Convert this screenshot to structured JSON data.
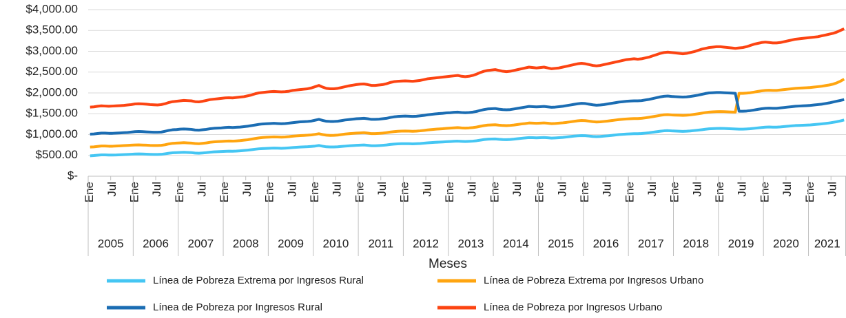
{
  "chart_data": {
    "type": "line",
    "x_label": "Meses",
    "categories": [
      "Ene",
      null,
      null,
      null,
      null,
      null,
      "Jul",
      null,
      null,
      null,
      null,
      null,
      "Ene",
      null,
      null,
      null,
      null,
      null,
      "Jul",
      null,
      null,
      null,
      null,
      null,
      "Ene",
      null,
      null,
      null,
      null,
      null,
      "Jul",
      null,
      null,
      null,
      null,
      null,
      "Ene",
      null,
      null,
      null,
      null,
      null,
      "Jul",
      null,
      null,
      null,
      null,
      null,
      "Ene",
      null,
      null,
      null,
      null,
      null,
      "Jul",
      null,
      null,
      null,
      null,
      null,
      "Ene",
      null,
      null,
      null,
      null,
      null,
      "Jul",
      null,
      null,
      null,
      null,
      null,
      "Ene",
      null,
      null,
      null,
      null,
      null,
      "Jul",
      null,
      null,
      null,
      null,
      null,
      "Ene",
      null,
      null,
      null,
      null,
      null,
      "Jul",
      null,
      null,
      null,
      null,
      null,
      "Ene",
      null,
      null,
      null,
      null,
      null,
      "Jul",
      null,
      null,
      null,
      null,
      null,
      "Ene",
      null,
      null,
      null,
      null,
      null,
      "Jul",
      null,
      null,
      null,
      null,
      null,
      "Ene",
      null,
      null,
      null,
      null,
      null,
      "Jul",
      null,
      null,
      null,
      null,
      null,
      "Ene",
      null,
      null,
      null,
      null,
      null,
      "Jul",
      null,
      null,
      null,
      null,
      null,
      "Ene",
      null,
      null,
      null,
      null,
      null,
      "Jul",
      null,
      null,
      null,
      null,
      null,
      "Ene",
      null,
      null,
      null,
      null,
      null,
      "Jul",
      null,
      null,
      null,
      null,
      null,
      "Ene",
      null,
      null,
      null,
      null,
      null,
      "Jul",
      null,
      null,
      null,
      null,
      null,
      "Ene",
      null,
      null,
      null,
      null,
      null,
      "Jul",
      null,
      null,
      null,
      null,
      null,
      "Ene",
      null,
      null,
      null,
      null,
      null,
      "Jul",
      null,
      null,
      null
    ],
    "groups": [
      "2005",
      "2006",
      "2007",
      "2008",
      "2009",
      "2010",
      "2011",
      "2012",
      "2013",
      "2014",
      "2015",
      "2016",
      "2017",
      "2018",
      "2019",
      "2020",
      "2021"
    ],
    "group_size": 12,
    "ylim": [
      0,
      4000
    ],
    "yticks": [
      {
        "value": 0,
        "label": "$-"
      },
      {
        "value": 500,
        "label": "$500.00"
      },
      {
        "value": 1000,
        "label": "$1,000.00"
      },
      {
        "value": 1500,
        "label": "$1,500.00"
      },
      {
        "value": 2000,
        "label": "$2,000.00"
      },
      {
        "value": 2500,
        "label": "$2,500.00"
      },
      {
        "value": 3000,
        "label": "$3,000.00"
      },
      {
        "value": 3500,
        "label": "$3,500.00"
      },
      {
        "value": 4000,
        "label": "$4,000.00"
      }
    ],
    "grid": true,
    "series": [
      {
        "name": "Línea de Pobreza Extrema por Ingresos Rural",
        "color": "#45c6f3",
        "values": [
          490,
          495,
          505,
          512,
          512,
          508,
          508,
          510,
          514,
          518,
          522,
          528,
          533,
          535,
          532,
          528,
          524,
          522,
          522,
          526,
          538,
          552,
          562,
          566,
          570,
          574,
          570,
          566,
          556,
          552,
          558,
          566,
          576,
          584,
          588,
          592,
          598,
          602,
          600,
          604,
          610,
          618,
          626,
          636,
          648,
          658,
          664,
          668,
          672,
          676,
          674,
          670,
          674,
          680,
          688,
          694,
          700,
          704,
          708,
          714,
          724,
          738,
          720,
          706,
          702,
          702,
          706,
          714,
          722,
          730,
          736,
          742,
          746,
          750,
          742,
          732,
          732,
          736,
          742,
          750,
          762,
          770,
          776,
          780,
          782,
          780,
          776,
          780,
          786,
          794,
          802,
          808,
          814,
          818,
          822,
          828,
          832,
          838,
          842,
          836,
          832,
          836,
          842,
          852,
          866,
          880,
          888,
          892,
          895,
          886,
          880,
          878,
          882,
          890,
          900,
          910,
          920,
          928,
          925,
          922,
          926,
          930,
          924,
          916,
          920,
          926,
          932,
          942,
          952,
          962,
          970,
          976,
          973,
          964,
          955,
          950,
          954,
          962,
          970,
          980,
          990,
          1000,
          1006,
          1012,
          1016,
          1020,
          1020,
          1024,
          1034,
          1044,
          1056,
          1068,
          1080,
          1090,
          1094,
          1088,
          1084,
          1080,
          1077,
          1080,
          1086,
          1096,
          1106,
          1116,
          1128,
          1138,
          1142,
          1146,
          1148,
          1146,
          1142,
          1138,
          1134,
          1130,
          1130,
          1134,
          1140,
          1150,
          1160,
          1170,
          1178,
          1182,
          1178,
          1178,
          1184,
          1192,
          1200,
          1208,
          1216,
          1220,
          1224,
          1228,
          1232,
          1240,
          1248,
          1256,
          1266,
          1278,
          1292,
          1308,
          1328,
          1350
        ]
      },
      {
        "name": "Línea de Pobreza Extrema por Ingresos Urbano",
        "color": "#ffa510",
        "values": [
          700,
          705,
          715,
          725,
          725,
          720,
          720,
          725,
          730,
          735,
          740,
          745,
          750,
          752,
          748,
          745,
          740,
          738,
          738,
          742,
          755,
          775,
          790,
          795,
          800,
          805,
          800,
          795,
          785,
          780,
          790,
          800,
          815,
          825,
          830,
          835,
          840,
          845,
          842,
          848,
          855,
          865,
          875,
          890,
          905,
          920,
          930,
          935,
          940,
          945,
          942,
          938,
          942,
          950,
          960,
          968,
          975,
          980,
          985,
          992,
          1005,
          1020,
          1000,
          985,
          980,
          982,
          988,
          1000,
          1012,
          1020,
          1028,
          1035,
          1040,
          1045,
          1035,
          1022,
          1022,
          1028,
          1035,
          1045,
          1060,
          1070,
          1078,
          1082,
          1085,
          1082,
          1078,
          1082,
          1090,
          1100,
          1112,
          1120,
          1128,
          1135,
          1140,
          1148,
          1155,
          1162,
          1168,
          1160,
          1155,
          1160,
          1168,
          1180,
          1198,
          1215,
          1228,
          1232,
          1236,
          1225,
          1218,
          1215,
          1220,
          1230,
          1242,
          1255,
          1265,
          1278,
          1275,
          1270,
          1275,
          1280,
          1272,
          1262,
          1266,
          1275,
          1282,
          1292,
          1305,
          1318,
          1330,
          1338,
          1334,
          1322,
          1310,
          1302,
          1306,
          1315,
          1325,
          1336,
          1348,
          1360,
          1368,
          1375,
          1380,
          1385,
          1385,
          1390,
          1402,
          1415,
          1430,
          1445,
          1462,
          1475,
          1480,
          1472,
          1468,
          1464,
          1460,
          1465,
          1472,
          1485,
          1498,
          1512,
          1528,
          1540,
          1545,
          1550,
          1552,
          1550,
          1546,
          1542,
          1540,
          1990,
          1990,
          1995,
          2005,
          2020,
          2035,
          2050,
          2060,
          2065,
          2060,
          2060,
          2070,
          2080,
          2090,
          2100,
          2110,
          2115,
          2120,
          2125,
          2130,
          2140,
          2150,
          2160,
          2175,
          2190,
          2210,
          2240,
          2280,
          2330
        ]
      },
      {
        "name": "Línea de Pobreza por Ingresos Rural",
        "color": "#1b6db3",
        "values": [
          1010,
          1015,
          1025,
          1035,
          1035,
          1030,
          1030,
          1035,
          1040,
          1045,
          1050,
          1060,
          1070,
          1075,
          1070,
          1065,
          1060,
          1055,
          1055,
          1060,
          1080,
          1100,
          1115,
          1120,
          1130,
          1135,
          1130,
          1125,
          1110,
          1105,
          1115,
          1125,
          1140,
          1150,
          1155,
          1160,
          1170,
          1175,
          1170,
          1175,
          1180,
          1190,
          1200,
          1215,
          1230,
          1245,
          1255,
          1260,
          1265,
          1270,
          1265,
          1260,
          1265,
          1275,
          1285,
          1295,
          1305,
          1310,
          1315,
          1325,
          1345,
          1365,
          1340,
          1320,
          1315,
          1315,
          1320,
          1335,
          1350,
          1360,
          1370,
          1380,
          1385,
          1390,
          1380,
          1365,
          1365,
          1370,
          1380,
          1390,
          1410,
          1425,
          1435,
          1440,
          1445,
          1440,
          1435,
          1440,
          1450,
          1460,
          1475,
          1485,
          1495,
          1505,
          1510,
          1520,
          1525,
          1535,
          1540,
          1530,
          1525,
          1530,
          1540,
          1555,
          1580,
          1600,
          1615,
          1620,
          1625,
          1610,
          1600,
          1595,
          1600,
          1615,
          1630,
          1645,
          1660,
          1675,
          1670,
          1665,
          1670,
          1675,
          1665,
          1655,
          1660,
          1670,
          1680,
          1695,
          1710,
          1725,
          1740,
          1750,
          1745,
          1730,
          1715,
          1705,
          1710,
          1720,
          1735,
          1750,
          1765,
          1780,
          1790,
          1800,
          1805,
          1810,
          1810,
          1815,
          1830,
          1845,
          1865,
          1885,
          1905,
          1920,
          1925,
          1915,
          1910,
          1905,
          1900,
          1905,
          1915,
          1930,
          1945,
          1965,
          1985,
          2000,
          2005,
          2010,
          2010,
          2005,
          2000,
          1995,
          1990,
          1560,
          1560,
          1565,
          1575,
          1590,
          1605,
          1620,
          1630,
          1635,
          1630,
          1630,
          1640,
          1650,
          1660,
          1670,
          1680,
          1685,
          1690,
          1695,
          1700,
          1710,
          1720,
          1730,
          1745,
          1760,
          1780,
          1800,
          1820,
          1840
        ]
      },
      {
        "name": "Línea de Pobreza por Ingresos Urbano",
        "color": "#fc4412",
        "values": [
          1660,
          1665,
          1680,
          1690,
          1685,
          1680,
          1685,
          1690,
          1695,
          1700,
          1710,
          1720,
          1735,
          1740,
          1735,
          1730,
          1720,
          1715,
          1710,
          1720,
          1740,
          1770,
          1790,
          1800,
          1810,
          1820,
          1815,
          1810,
          1790,
          1785,
          1800,
          1820,
          1840,
          1850,
          1860,
          1870,
          1880,
          1885,
          1880,
          1890,
          1900,
          1910,
          1930,
          1950,
          1980,
          2000,
          2010,
          2020,
          2030,
          2035,
          2030,
          2025,
          2030,
          2040,
          2060,
          2070,
          2080,
          2090,
          2100,
          2120,
          2150,
          2180,
          2140,
          2110,
          2100,
          2100,
          2110,
          2130,
          2150,
          2170,
          2185,
          2200,
          2210,
          2215,
          2200,
          2180,
          2180,
          2190,
          2200,
          2220,
          2250,
          2270,
          2280,
          2285,
          2290,
          2285,
          2280,
          2290,
          2300,
          2320,
          2340,
          2350,
          2360,
          2370,
          2380,
          2390,
          2400,
          2410,
          2420,
          2400,
          2390,
          2400,
          2420,
          2450,
          2490,
          2520,
          2540,
          2550,
          2560,
          2540,
          2520,
          2510,
          2520,
          2540,
          2560,
          2580,
          2600,
          2620,
          2610,
          2600,
          2610,
          2620,
          2600,
          2580,
          2590,
          2600,
          2620,
          2640,
          2660,
          2680,
          2700,
          2710,
          2700,
          2680,
          2660,
          2650,
          2660,
          2680,
          2700,
          2720,
          2740,
          2760,
          2780,
          2800,
          2810,
          2820,
          2810,
          2820,
          2840,
          2860,
          2890,
          2920,
          2950,
          2970,
          2980,
          2970,
          2960,
          2950,
          2940,
          2950,
          2970,
          2990,
          3020,
          3050,
          3070,
          3090,
          3100,
          3110,
          3110,
          3100,
          3090,
          3080,
          3070,
          3080,
          3090,
          3110,
          3140,
          3170,
          3190,
          3210,
          3220,
          3210,
          3200,
          3200,
          3210,
          3230,
          3250,
          3270,
          3290,
          3300,
          3310,
          3320,
          3330,
          3340,
          3350,
          3370,
          3390,
          3410,
          3430,
          3460,
          3500,
          3540
        ]
      }
    ]
  }
}
